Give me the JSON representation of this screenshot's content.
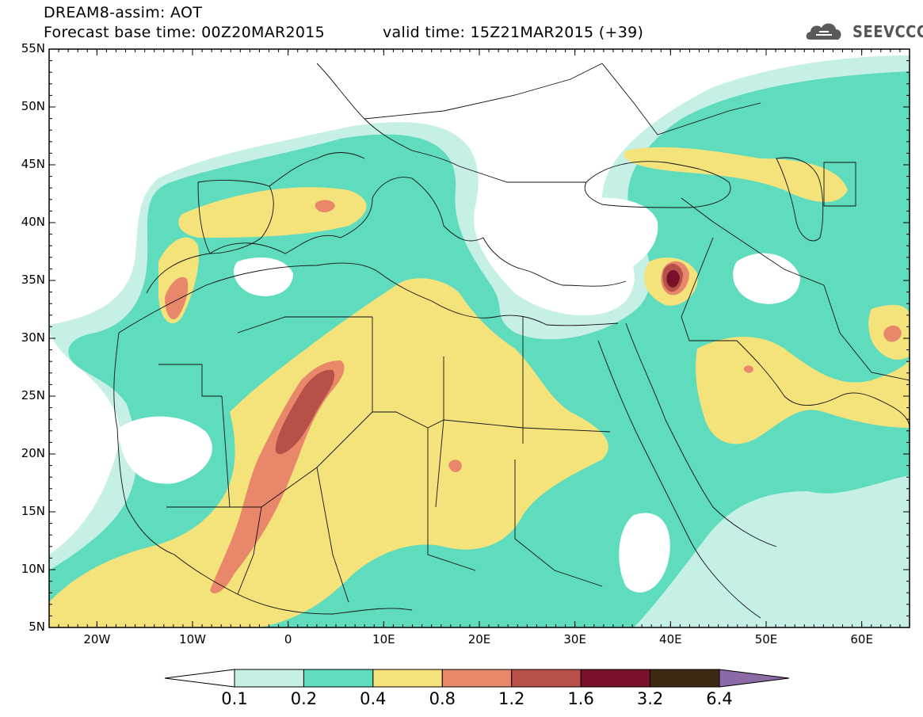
{
  "header": {
    "title": "DREAM8-assim: AOT",
    "base_time": "Forecast base time: 00Z20MAR2015",
    "valid_time": "valid time: 15Z21MAR2015 (+39)",
    "logo_text": "SEEVCCC",
    "logo_icon": "cloud-icon"
  },
  "map": {
    "lat_labels": [
      "55N",
      "50N",
      "45N",
      "40N",
      "35N",
      "30N",
      "25N",
      "20N",
      "15N",
      "10N",
      "5N"
    ],
    "lon_labels": [
      "20W",
      "10W",
      "0",
      "10E",
      "20E",
      "30E",
      "40E",
      "50E",
      "60E"
    ],
    "lat_range": [
      5,
      55
    ],
    "lon_range": [
      -25,
      65
    ]
  },
  "colorbar": {
    "labels": [
      "0.1",
      "0.2",
      "0.4",
      "0.8",
      "1.2",
      "1.6",
      "3.2",
      "6.4"
    ],
    "colors": [
      "#ffffff",
      "#c6f0e6",
      "#5fdcbd",
      "#f4e27a",
      "#e8876a",
      "#b8504a",
      "#7a0f2a",
      "#3d2814",
      "#8b6aa8"
    ]
  },
  "palette": {
    "c01": "#c6f0e6",
    "c02": "#5fdcbd",
    "c04": "#f4e27a",
    "c08": "#e8876a",
    "c12": "#b8504a",
    "c16": "#7a0f2a"
  }
}
